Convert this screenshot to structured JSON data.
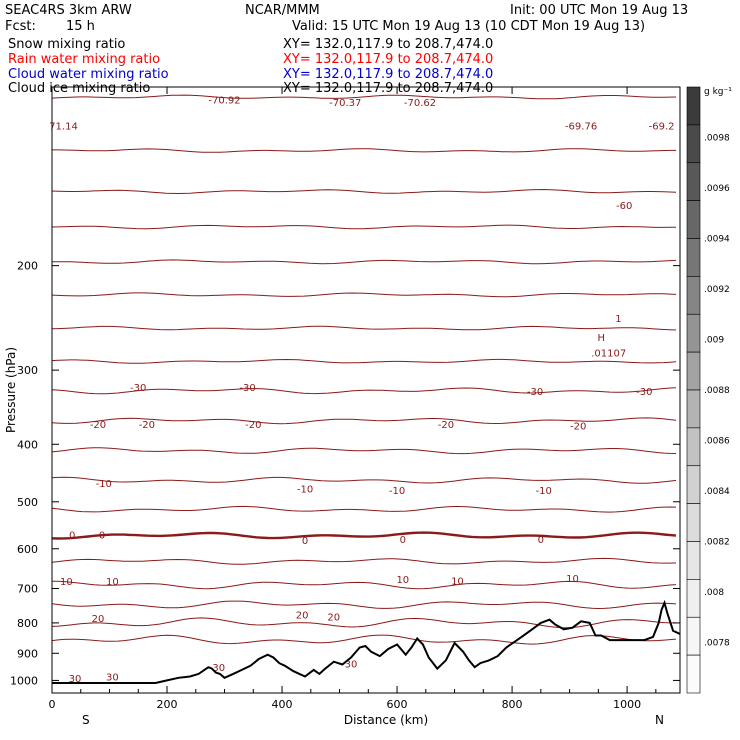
{
  "header": {
    "model": "SEAC4RS  3km ARW",
    "org": "NCAR/MMM",
    "init": "Init: 00 UTC Mon 19 Aug 13",
    "fcst_label": "Fcst:",
    "fcst_value": "15 h",
    "valid": "Valid: 15 UTC Mon 19 Aug 13 (10 CDT Mon 19 Aug 13)"
  },
  "legend": [
    {
      "name": "Snow mixing ratio",
      "xy": "XY= 132.0,117.9 to 208.7,474.0",
      "color": "#000000"
    },
    {
      "name": "Rain water mixing ratio",
      "xy": "XY= 132.0,117.9 to 208.7,474.0",
      "color": "#ff0000"
    },
    {
      "name": "Cloud water mixing ratio",
      "xy": "XY= 132.0,117.9 to 208.7,474.0",
      "color": "#0000cc"
    },
    {
      "name": "Cloud ice mixing ratio",
      "xy": "XY= 132.0,117.9 to 208.7,474.0",
      "color": "#000000"
    }
  ],
  "chart_data": {
    "type": "line",
    "xlabel": "Distance (km)",
    "ylabel": "Pressure (hPa)",
    "xlim": [
      0,
      1092
    ],
    "ylim": [
      1050,
      100
    ],
    "y_scale": "log",
    "x_ticks": [
      0,
      200,
      400,
      600,
      800,
      1000
    ],
    "y_ticks": [
      200,
      300,
      400,
      500,
      600,
      700,
      800,
      900,
      1000
    ],
    "end_labels": {
      "left": "S",
      "right": "N"
    },
    "isotherm_color": "#8b1a1a",
    "isotherm_levels": [
      {
        "p": 104,
        "amp": 2
      },
      {
        "p": 128,
        "amp": 2
      },
      {
        "p": 150,
        "amp": 2
      },
      {
        "p": 172,
        "amp": 2
      },
      {
        "p": 197,
        "amp": 2
      },
      {
        "p": 224,
        "amp": 2
      },
      {
        "p": 255,
        "amp": 2
      },
      {
        "p": 290,
        "amp": 2
      },
      {
        "p": 325,
        "amp": 3
      },
      {
        "p": 365,
        "amp": 3
      },
      {
        "p": 410,
        "amp": 3
      },
      {
        "p": 460,
        "amp": 3
      },
      {
        "p": 515,
        "amp": 3
      },
      {
        "p": 570,
        "amp": 3,
        "bold": true
      },
      {
        "p": 630,
        "amp": 3
      },
      {
        "p": 690,
        "amp": 4
      },
      {
        "p": 745,
        "amp": 4
      },
      {
        "p": 800,
        "amp": 5
      },
      {
        "p": 855,
        "amp": 5
      }
    ],
    "contour_labels": [
      {
        "x": 20,
        "p": 116,
        "text": "71.14"
      },
      {
        "x": 300,
        "p": 105,
        "text": "-70.92"
      },
      {
        "x": 510,
        "p": 106,
        "text": "-70.37"
      },
      {
        "x": 640,
        "p": 106,
        "text": "-70.62"
      },
      {
        "x": 920,
        "p": 116,
        "text": "-69.76"
      },
      {
        "x": 1060,
        "p": 116,
        "text": "-69.2"
      },
      {
        "x": 995,
        "p": 158,
        "text": "-60"
      },
      {
        "x": 150,
        "p": 320,
        "text": "-30"
      },
      {
        "x": 340,
        "p": 320,
        "text": "-30"
      },
      {
        "x": 840,
        "p": 325,
        "text": "-30"
      },
      {
        "x": 1030,
        "p": 325,
        "text": "-30"
      },
      {
        "x": 80,
        "p": 370,
        "text": "-20"
      },
      {
        "x": 165,
        "p": 370,
        "text": "-20"
      },
      {
        "x": 350,
        "p": 370,
        "text": "-20"
      },
      {
        "x": 685,
        "p": 370,
        "text": "-20"
      },
      {
        "x": 915,
        "p": 372,
        "text": "-20"
      },
      {
        "x": 90,
        "p": 465,
        "text": "-10"
      },
      {
        "x": 440,
        "p": 475,
        "text": "-10"
      },
      {
        "x": 600,
        "p": 478,
        "text": "-10"
      },
      {
        "x": 855,
        "p": 478,
        "text": "-10"
      },
      {
        "x": 35,
        "p": 568,
        "text": "0"
      },
      {
        "x": 87,
        "p": 568,
        "text": "0"
      },
      {
        "x": 440,
        "p": 580,
        "text": "0"
      },
      {
        "x": 610,
        "p": 578,
        "text": "0"
      },
      {
        "x": 850,
        "p": 578,
        "text": "0"
      },
      {
        "x": 25,
        "p": 680,
        "text": "10"
      },
      {
        "x": 105,
        "p": 680,
        "text": "10"
      },
      {
        "x": 610,
        "p": 675,
        "text": "10"
      },
      {
        "x": 705,
        "p": 678,
        "text": "10"
      },
      {
        "x": 905,
        "p": 672,
        "text": "10"
      },
      {
        "x": 80,
        "p": 785,
        "text": "20"
      },
      {
        "x": 435,
        "p": 775,
        "text": "20"
      },
      {
        "x": 490,
        "p": 780,
        "text": "20"
      },
      {
        "x": 520,
        "p": 937,
        "text": "30"
      },
      {
        "x": 290,
        "p": 950,
        "text": "30"
      },
      {
        "x": 40,
        "p": 990,
        "text": "30"
      },
      {
        "x": 105,
        "p": 985,
        "text": "30"
      },
      {
        "x": 955,
        "p": 264,
        "text": "H"
      },
      {
        "x": 968,
        "p": 280,
        "text": ".01107"
      },
      {
        "x": 985,
        "p": 245,
        "text": "1"
      }
    ],
    "terrain": {
      "x": [
        0,
        60,
        120,
        180,
        200,
        220,
        240,
        255,
        265,
        272,
        278,
        285,
        292,
        300,
        315,
        330,
        345,
        360,
        375,
        385,
        395,
        405,
        420,
        440,
        455,
        465,
        475,
        490,
        505,
        520,
        535,
        545,
        555,
        570,
        585,
        600,
        615,
        625,
        635,
        645,
        655,
        670,
        685,
        700,
        715,
        725,
        735,
        745,
        760,
        775,
        790,
        805,
        820,
        835,
        850,
        865,
        875,
        890,
        905,
        920,
        935,
        945,
        955,
        970,
        990,
        1010,
        1030,
        1045,
        1055,
        1060,
        1065,
        1070,
        1080,
        1092
      ],
      "p": [
        1010,
        1010,
        1010,
        1010,
        1000,
        990,
        985,
        975,
        960,
        950,
        955,
        970,
        975,
        990,
        975,
        960,
        945,
        920,
        905,
        915,
        935,
        945,
        965,
        985,
        960,
        975,
        955,
        930,
        940,
        915,
        880,
        875,
        895,
        910,
        885,
        870,
        905,
        880,
        850,
        870,
        915,
        955,
        925,
        865,
        895,
        925,
        950,
        935,
        925,
        910,
        880,
        860,
        840,
        820,
        800,
        790,
        805,
        820,
        815,
        795,
        800,
        840,
        840,
        855,
        855,
        855,
        855,
        845,
        800,
        760,
        740,
        770,
        825,
        835
      ]
    },
    "colorbar": {
      "unit": "g kg⁻¹",
      "labels": [
        ".0098",
        ".0096",
        ".0094",
        ".0092",
        ".009",
        ".0088",
        ".0086",
        ".0084",
        ".0082",
        ".008",
        ".0078"
      ],
      "colors": [
        "#3b3b3b",
        "#4a4a4a",
        "#585858",
        "#676767",
        "#767676",
        "#858585",
        "#949494",
        "#a3a3a3",
        "#b3b3b3",
        "#c2c2c2",
        "#d1d1d1",
        "#dcdcdc",
        "#e6e6e6",
        "#efefef",
        "#f6f6f6",
        "#fbfbfb"
      ]
    }
  }
}
